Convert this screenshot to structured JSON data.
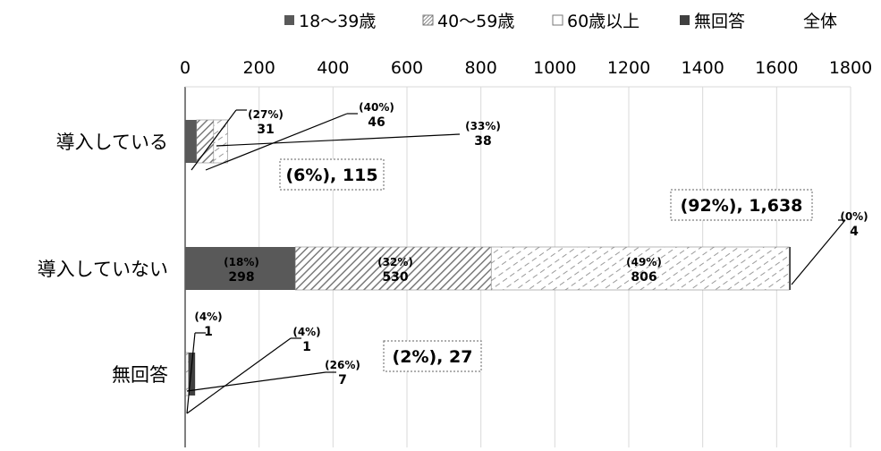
{
  "chart_data": {
    "type": "bar",
    "orientation": "horizontal",
    "stacked": true,
    "categories": [
      "導入している",
      "導入していない",
      "無回答"
    ],
    "xlim": [
      0,
      1800
    ],
    "xticks": [
      "0",
      "200",
      "400",
      "600",
      "800",
      "1000",
      "1200",
      "1400",
      "1600",
      "1800"
    ],
    "grid": true,
    "legend_position": "top",
    "series": [
      {
        "name": "18～39歳",
        "color": "#595959",
        "pattern": "solid",
        "values": [
          31,
          298,
          1
        ],
        "labels": [
          "(27%)\n31",
          "(18%)\n298",
          "(4%)\n1"
        ]
      },
      {
        "name": "40～59歳",
        "color": "#7f7f7f",
        "pattern": "hatch",
        "values": [
          46,
          530,
          1
        ],
        "labels": [
          "(40%)\n46",
          "(32%)\n530",
          "(4%)\n1"
        ]
      },
      {
        "name": "60歳以上",
        "color": "#a6a6a6",
        "pattern": "dashed",
        "values": [
          38,
          806,
          7
        ],
        "labels": [
          "(33%)\n38",
          "(49%)\n806",
          "(26%)\n7"
        ]
      },
      {
        "name": "無回答",
        "color": "#404040",
        "pattern": "solid",
        "values": [
          0,
          4,
          18
        ],
        "labels": [
          "",
          "(0%)\n4",
          ""
        ]
      }
    ],
    "totals": {
      "name": "全体",
      "labels": [
        "(6%), 115",
        "(92%), 1,638",
        "(2%), 27"
      ]
    }
  }
}
